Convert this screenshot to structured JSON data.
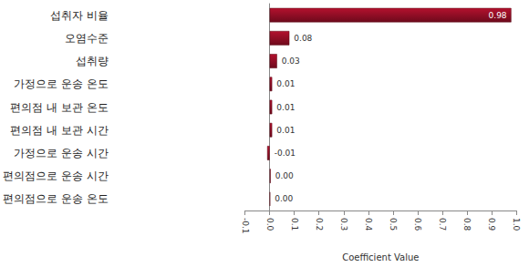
{
  "chart_data": {
    "type": "bar",
    "orientation": "horizontal",
    "categories": [
      "섭취자 비율",
      "오염수준",
      "섭취량",
      "가정으로 운송 온도",
      "편의점 내 보관 온도",
      "편의점 내 보관 시간",
      "가정으로 운송 시간",
      "편의점으로 운송 시간",
      "편의점으로 운송 온도"
    ],
    "values": [
      0.98,
      0.08,
      0.03,
      0.01,
      0.01,
      0.01,
      -0.01,
      0.004,
      0.002
    ],
    "value_labels": [
      "0.98",
      "0.08",
      "0.03",
      "0.01",
      "0.01",
      "0.01",
      "-0.01",
      "0.00",
      "0.00"
    ],
    "data_labels": true,
    "color": "#b3112e",
    "x_label": "Coefficient Value",
    "xlim": [
      -0.1,
      1.0
    ],
    "xticks": [
      -0.1,
      {
        "value": 0,
        "label": "0.0"
      },
      0.1,
      0.2,
      0.3,
      0.4,
      0.5,
      0.6,
      0.7,
      0.8,
      0.9,
      {
        "value": 1.0,
        "label": "1.0"
      }
    ],
    "grid": false
  }
}
